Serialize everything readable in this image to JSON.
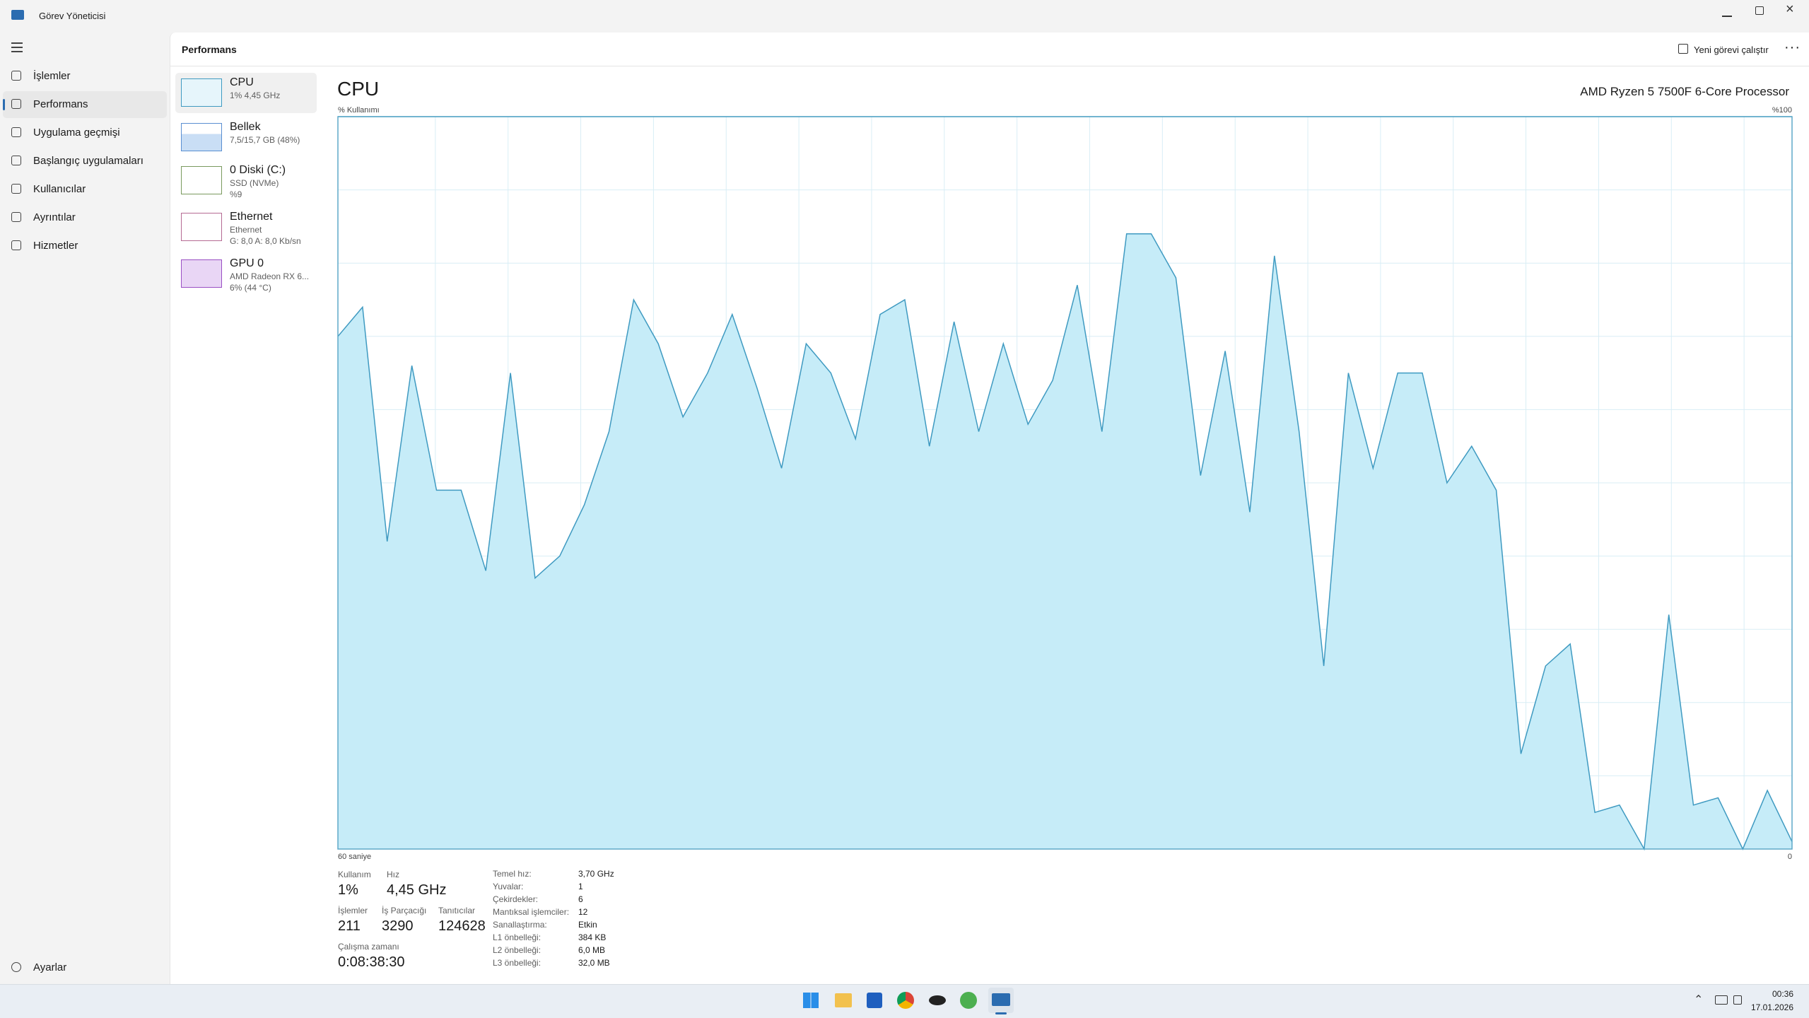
{
  "window": {
    "title": "Görev Yöneticisi"
  },
  "nav": {
    "items": [
      "İşlemler",
      "Performans",
      "Uygulama geçmişi",
      "Başlangıç uygulamaları",
      "Kullanıcılar",
      "Ayrıntılar",
      "Hizmetler"
    ],
    "settings": "Ayarlar"
  },
  "header": {
    "title": "Performans",
    "run_task": "Yeni görevi çalıştır"
  },
  "devices": [
    {
      "name": "CPU",
      "lines": [
        "1% 4,45 GHz"
      ]
    },
    {
      "name": "Bellek",
      "lines": [
        "7,5/15,7 GB (48%)"
      ]
    },
    {
      "name": "0 Diski (C:)",
      "lines": [
        "SSD (NVMe)",
        "%9"
      ]
    },
    {
      "name": "Ethernet",
      "lines": [
        "Ethernet",
        "G: 8,0 A: 8,0 Kb/sn"
      ]
    },
    {
      "name": "GPU 0",
      "lines": [
        "AMD Radeon RX 6...",
        "6% (44 °C)"
      ]
    }
  ],
  "cpu": {
    "title": "CPU",
    "processor": "AMD Ryzen 5 7500F 6-Core Processor",
    "stats": {
      "usage": {
        "label": "Kullanım",
        "value": "1%"
      },
      "speed": {
        "label": "Hız",
        "value": "4,45 GHz"
      },
      "processes": {
        "label": "İşlemler",
        "value": "211"
      },
      "threads": {
        "label": "İş Parçacığı",
        "value": "3290"
      },
      "handles": {
        "label": "Tanıtıcılar",
        "value": "124628"
      },
      "uptime": {
        "label": "Çalışma zamanı",
        "value": "0:08:38:30"
      }
    },
    "specs": [
      [
        "Temel hız:",
        "3,70 GHz"
      ],
      [
        "Yuvalar:",
        "1"
      ],
      [
        "Çekirdekler:",
        "6"
      ],
      [
        "Mantıksal işlemciler:",
        "12"
      ],
      [
        "Sanallaştırma:",
        "Etkin"
      ],
      [
        "L1 önbelleği:",
        "384 KB"
      ],
      [
        "L2 önbelleği:",
        "6,0 MB"
      ],
      [
        "L3 önbelleği:",
        "32,0 MB"
      ]
    ]
  },
  "chart_data": {
    "type": "area",
    "y_label": "% Kullanımı",
    "x_label_start": "60 saniye",
    "x_label_end": "0",
    "ylim": [
      0,
      100
    ],
    "yticks": [
      {
        "value": 100,
        "label": "%100"
      }
    ],
    "color": "#c6ecf8",
    "line_color": "#3f9ac1",
    "values": [
      70,
      74,
      42,
      66,
      49,
      49,
      38,
      65,
      37,
      40,
      47,
      57,
      75,
      69,
      59,
      65,
      73,
      63,
      52,
      69,
      65,
      56,
      73,
      75,
      55,
      72,
      57,
      69,
      58,
      64,
      77,
      57,
      84,
      84,
      78,
      51,
      68,
      46,
      81,
      57,
      25,
      65,
      52,
      65,
      65,
      50,
      55,
      49,
      13,
      25,
      28,
      5,
      6,
      0,
      32,
      6,
      7,
      0,
      8,
      1
    ]
  },
  "taskbar": {
    "time": "00:36",
    "date": "17.01.2026"
  }
}
